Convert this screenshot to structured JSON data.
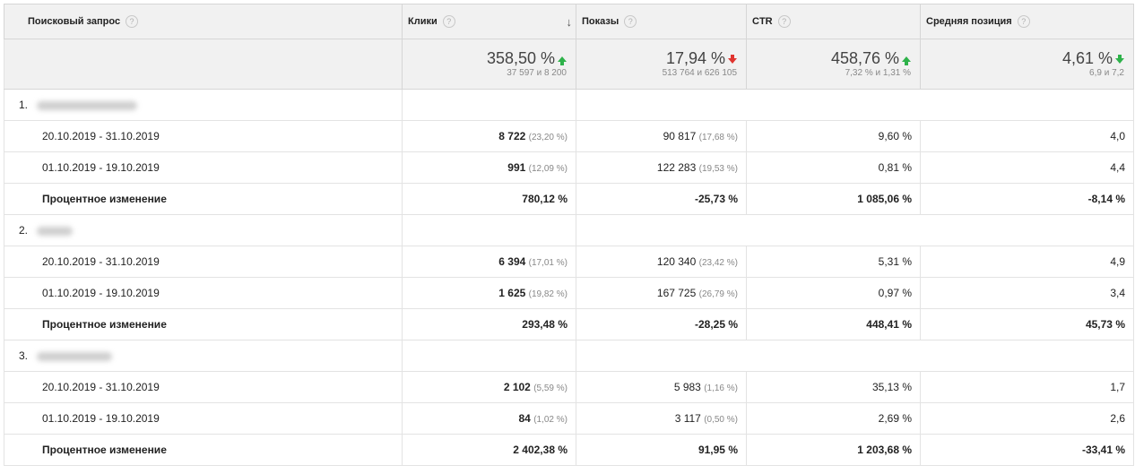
{
  "headers": {
    "query": "Поисковый запрос",
    "clicks": "Клики",
    "impressions": "Показы",
    "ctr": "CTR",
    "position": "Средняя позиция",
    "help": "?",
    "sort_icon": "↓"
  },
  "summary": {
    "clicks": {
      "main": "358,50 %",
      "sub": "37 597 и 8 200",
      "trend": "up"
    },
    "impressions": {
      "main": "17,94 %",
      "sub": "513 764 и 626 105",
      "trend": "down-bad"
    },
    "ctr": {
      "main": "458,76 %",
      "sub": "7,32 % и 1,31 %",
      "trend": "up"
    },
    "position": {
      "main": "4,61 %",
      "sub": "6,9 и 7,2",
      "trend": "down-good"
    }
  },
  "groups": [
    {
      "index": "1.",
      "rows": [
        {
          "label": "20.10.2019 - 31.10.2019",
          "clicks": "8 722",
          "clicks_pct": "(23,20 %)",
          "impr": "90 817",
          "impr_pct": "(17,68 %)",
          "ctr": "9,60 %",
          "pos": "4,0"
        },
        {
          "label": "01.10.2019 - 19.10.2019",
          "clicks": "991",
          "clicks_pct": "(12,09 %)",
          "impr": "122 283",
          "impr_pct": "(19,53 %)",
          "ctr": "0,81 %",
          "pos": "4,4"
        }
      ],
      "change": {
        "label": "Процентное изменение",
        "clicks": "780,12 %",
        "impr": "-25,73 %",
        "ctr": "1 085,06 %",
        "pos": "-8,14 %"
      }
    },
    {
      "index": "2.",
      "rows": [
        {
          "label": "20.10.2019 - 31.10.2019",
          "clicks": "6 394",
          "clicks_pct": "(17,01 %)",
          "impr": "120 340",
          "impr_pct": "(23,42 %)",
          "ctr": "5,31 %",
          "pos": "4,9"
        },
        {
          "label": "01.10.2019 - 19.10.2019",
          "clicks": "1 625",
          "clicks_pct": "(19,82 %)",
          "impr": "167 725",
          "impr_pct": "(26,79 %)",
          "ctr": "0,97 %",
          "pos": "3,4"
        }
      ],
      "change": {
        "label": "Процентное изменение",
        "clicks": "293,48 %",
        "impr": "-28,25 %",
        "ctr": "448,41 %",
        "pos": "45,73 %"
      }
    },
    {
      "index": "3.",
      "rows": [
        {
          "label": "20.10.2019 - 31.10.2019",
          "clicks": "2 102",
          "clicks_pct": "(5,59 %)",
          "impr": "5 983",
          "impr_pct": "(1,16 %)",
          "ctr": "35,13 %",
          "pos": "1,7"
        },
        {
          "label": "01.10.2019 - 19.10.2019",
          "clicks": "84",
          "clicks_pct": "(1,02 %)",
          "impr": "3 117",
          "impr_pct": "(0,50 %)",
          "ctr": "2,69 %",
          "pos": "2,6"
        }
      ],
      "change": {
        "label": "Процентное изменение",
        "clicks": "2 402,38 %",
        "impr": "91,95 %",
        "ctr": "1 203,68 %",
        "pos": "-33,41 %"
      }
    }
  ]
}
